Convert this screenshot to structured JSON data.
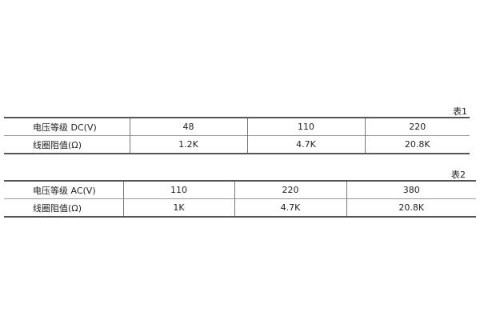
{
  "table1": {
    "caption": "表1",
    "rows": [
      [
        "电压等级 DC(V)",
        "48",
        "110",
        "220"
      ],
      [
        "线圈阻值(Ω)",
        "1.2K",
        "4.7K",
        "20.8K"
      ]
    ]
  },
  "table2": {
    "caption": "表2",
    "rows": [
      [
        "电压等级 AC(V)",
        "110",
        "220",
        "380"
      ],
      [
        "线圈阻值(Ω)",
        "1K",
        "4.7K",
        "20.8K"
      ]
    ]
  }
}
